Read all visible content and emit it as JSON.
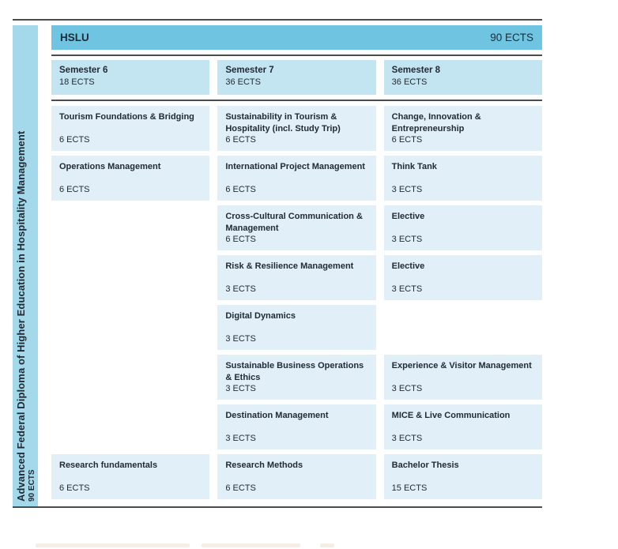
{
  "sidebar": {
    "title": "Advanced Federal Diploma of Higher Education in Hospitality Management",
    "ects": "90 ECTS"
  },
  "header": {
    "institution": "HSLU",
    "total_ects": "90 ECTS"
  },
  "columns": [
    {
      "semester": "Semester 6",
      "ects": "18 ECTS",
      "courses": [
        {
          "row": 1,
          "title": "Tourism Foundations & Bridging",
          "ects": "6 ECTS"
        },
        {
          "row": 2,
          "title": "Operations Management",
          "ects": "6 ECTS"
        },
        {
          "row": 8,
          "title": "Research fundamentals",
          "ects": "6 ECTS"
        }
      ]
    },
    {
      "semester": "Semester 7",
      "ects": "36 ECTS",
      "courses": [
        {
          "row": 1,
          "title": "Sustainability in Tourism & Hospitality (incl. Study Trip)",
          "ects": "6 ECTS"
        },
        {
          "row": 2,
          "title": "International Project Management",
          "ects": "6 ECTS"
        },
        {
          "row": 3,
          "title": "Cross-Cultural Communication & Management",
          "ects": "6 ECTS"
        },
        {
          "row": 4,
          "title": "Risk & Resilience Management",
          "ects": "3 ECTS"
        },
        {
          "row": 5,
          "title": "Digital Dynamics",
          "ects": "3 ECTS"
        },
        {
          "row": 6,
          "title": "Sustainable Business Operations & Ethics",
          "ects": "3 ECTS"
        },
        {
          "row": 7,
          "title": "Destination Management",
          "ects": "3 ECTS"
        },
        {
          "row": 8,
          "title": "Research Methods",
          "ects": "6 ECTS"
        }
      ]
    },
    {
      "semester": "Semester 8",
      "ects": "36 ECTS",
      "courses": [
        {
          "row": 1,
          "title": "Change, Innovation & Entrepreneurship",
          "ects": "6 ECTS"
        },
        {
          "row": 2,
          "title": "Think Tank",
          "ects": "3 ECTS"
        },
        {
          "row": 3,
          "title": "Elective",
          "ects": "3 ECTS"
        },
        {
          "row": 4,
          "title": "Elective",
          "ects": "3 ECTS"
        },
        {
          "row": 6,
          "title": "Experience & Visitor Management",
          "ects": "3 ECTS"
        },
        {
          "row": 7,
          "title": "MICE & Live Communication",
          "ects": "3 ECTS"
        },
        {
          "row": 8,
          "title": "Bachelor Thesis",
          "ects": "15 ECTS"
        }
      ]
    }
  ],
  "colors": {
    "header_bar": "#6fc5e1",
    "sidebar_band": "#a3d9ea",
    "semester_cell": "#c3e5f2",
    "course_card": "#e0eff8",
    "rule_line": "#4c4c4c",
    "text": "#212b36"
  }
}
